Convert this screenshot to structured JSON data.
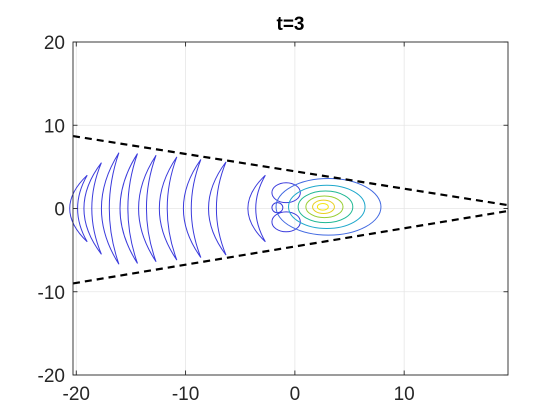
{
  "chart_data": {
    "type": "contour",
    "title": "t=3",
    "xlabel": "",
    "ylabel": "",
    "xlim": [
      -20.3,
      19.5
    ],
    "ylim": [
      -20,
      20
    ],
    "xticks": [
      -20,
      -10,
      0,
      10
    ],
    "xtick_labels": [
      "-20",
      "-10",
      "0",
      "10"
    ],
    "yticks": [
      -20,
      -10,
      0,
      10,
      20
    ],
    "ytick_labels": [
      "-20",
      "-10",
      "0",
      "10",
      "20"
    ],
    "grid": true,
    "box": true,
    "cone_lines": [
      {
        "style": "dashed",
        "color": "#000000",
        "x": [
          -20.3,
          19.5
        ],
        "y": [
          8.7,
          0.4
        ]
      },
      {
        "style": "dashed",
        "color": "#000000",
        "x": [
          -20.3,
          19.5
        ],
        "y": [
          -9.0,
          -0.3
        ]
      }
    ],
    "contour_groups": [
      {
        "name": "main-lobe",
        "center": [
          2.5,
          0.2
        ],
        "levels": [
          {
            "color": "#4169e1",
            "rx": 4.8,
            "ry": 3.4
          },
          {
            "color": "#1fa8cc",
            "rx": 3.5,
            "ry": 2.6
          },
          {
            "color": "#21b894",
            "rx": 2.5,
            "ry": 1.9
          },
          {
            "color": "#9acd32",
            "rx": 1.7,
            "ry": 1.3
          },
          {
            "color": "#e8d020",
            "rx": 1.0,
            "ry": 0.8
          },
          {
            "color": "#f5e612",
            "rx": 0.5,
            "ry": 0.4
          }
        ]
      }
    ],
    "side_lobe_blobs": [
      {
        "x": -0.8,
        "y": 1.9,
        "rx": 1.3,
        "ry": 1.2,
        "color": "#3b3bdc"
      },
      {
        "x": -0.8,
        "y": -1.6,
        "rx": 1.3,
        "ry": 1.2,
        "color": "#3b3bdc"
      },
      {
        "x": -1.6,
        "y": 0.1,
        "rx": 0.5,
        "ry": 0.6,
        "color": "#3b3bdc"
      }
    ],
    "fringe_arcs": [
      {
        "x": -2.7,
        "h": 4.0,
        "color": "#3b3bdc"
      },
      {
        "x": -6.3,
        "h": 5.6,
        "color": "#3b3bdc"
      },
      {
        "x": -8.6,
        "h": 5.9,
        "color": "#3b3bdc"
      },
      {
        "x": -10.8,
        "h": 6.2,
        "color": "#3b3bdc"
      },
      {
        "x": -12.7,
        "h": 6.4,
        "color": "#3b3bdc"
      },
      {
        "x": -14.4,
        "h": 6.6,
        "color": "#3b3bdc"
      },
      {
        "x": -16.1,
        "h": 6.7,
        "color": "#3b3bdc"
      },
      {
        "x": -17.7,
        "h": 5.5,
        "color": "#3b3bdc"
      },
      {
        "x": -19.0,
        "h": 4.0,
        "color": "#3b3bdc"
      }
    ],
    "colors": {
      "axis": "#262626",
      "grid": "#e6e6e6",
      "contour_low": "#3b3bdc",
      "contour_high": "#f5e612"
    }
  }
}
